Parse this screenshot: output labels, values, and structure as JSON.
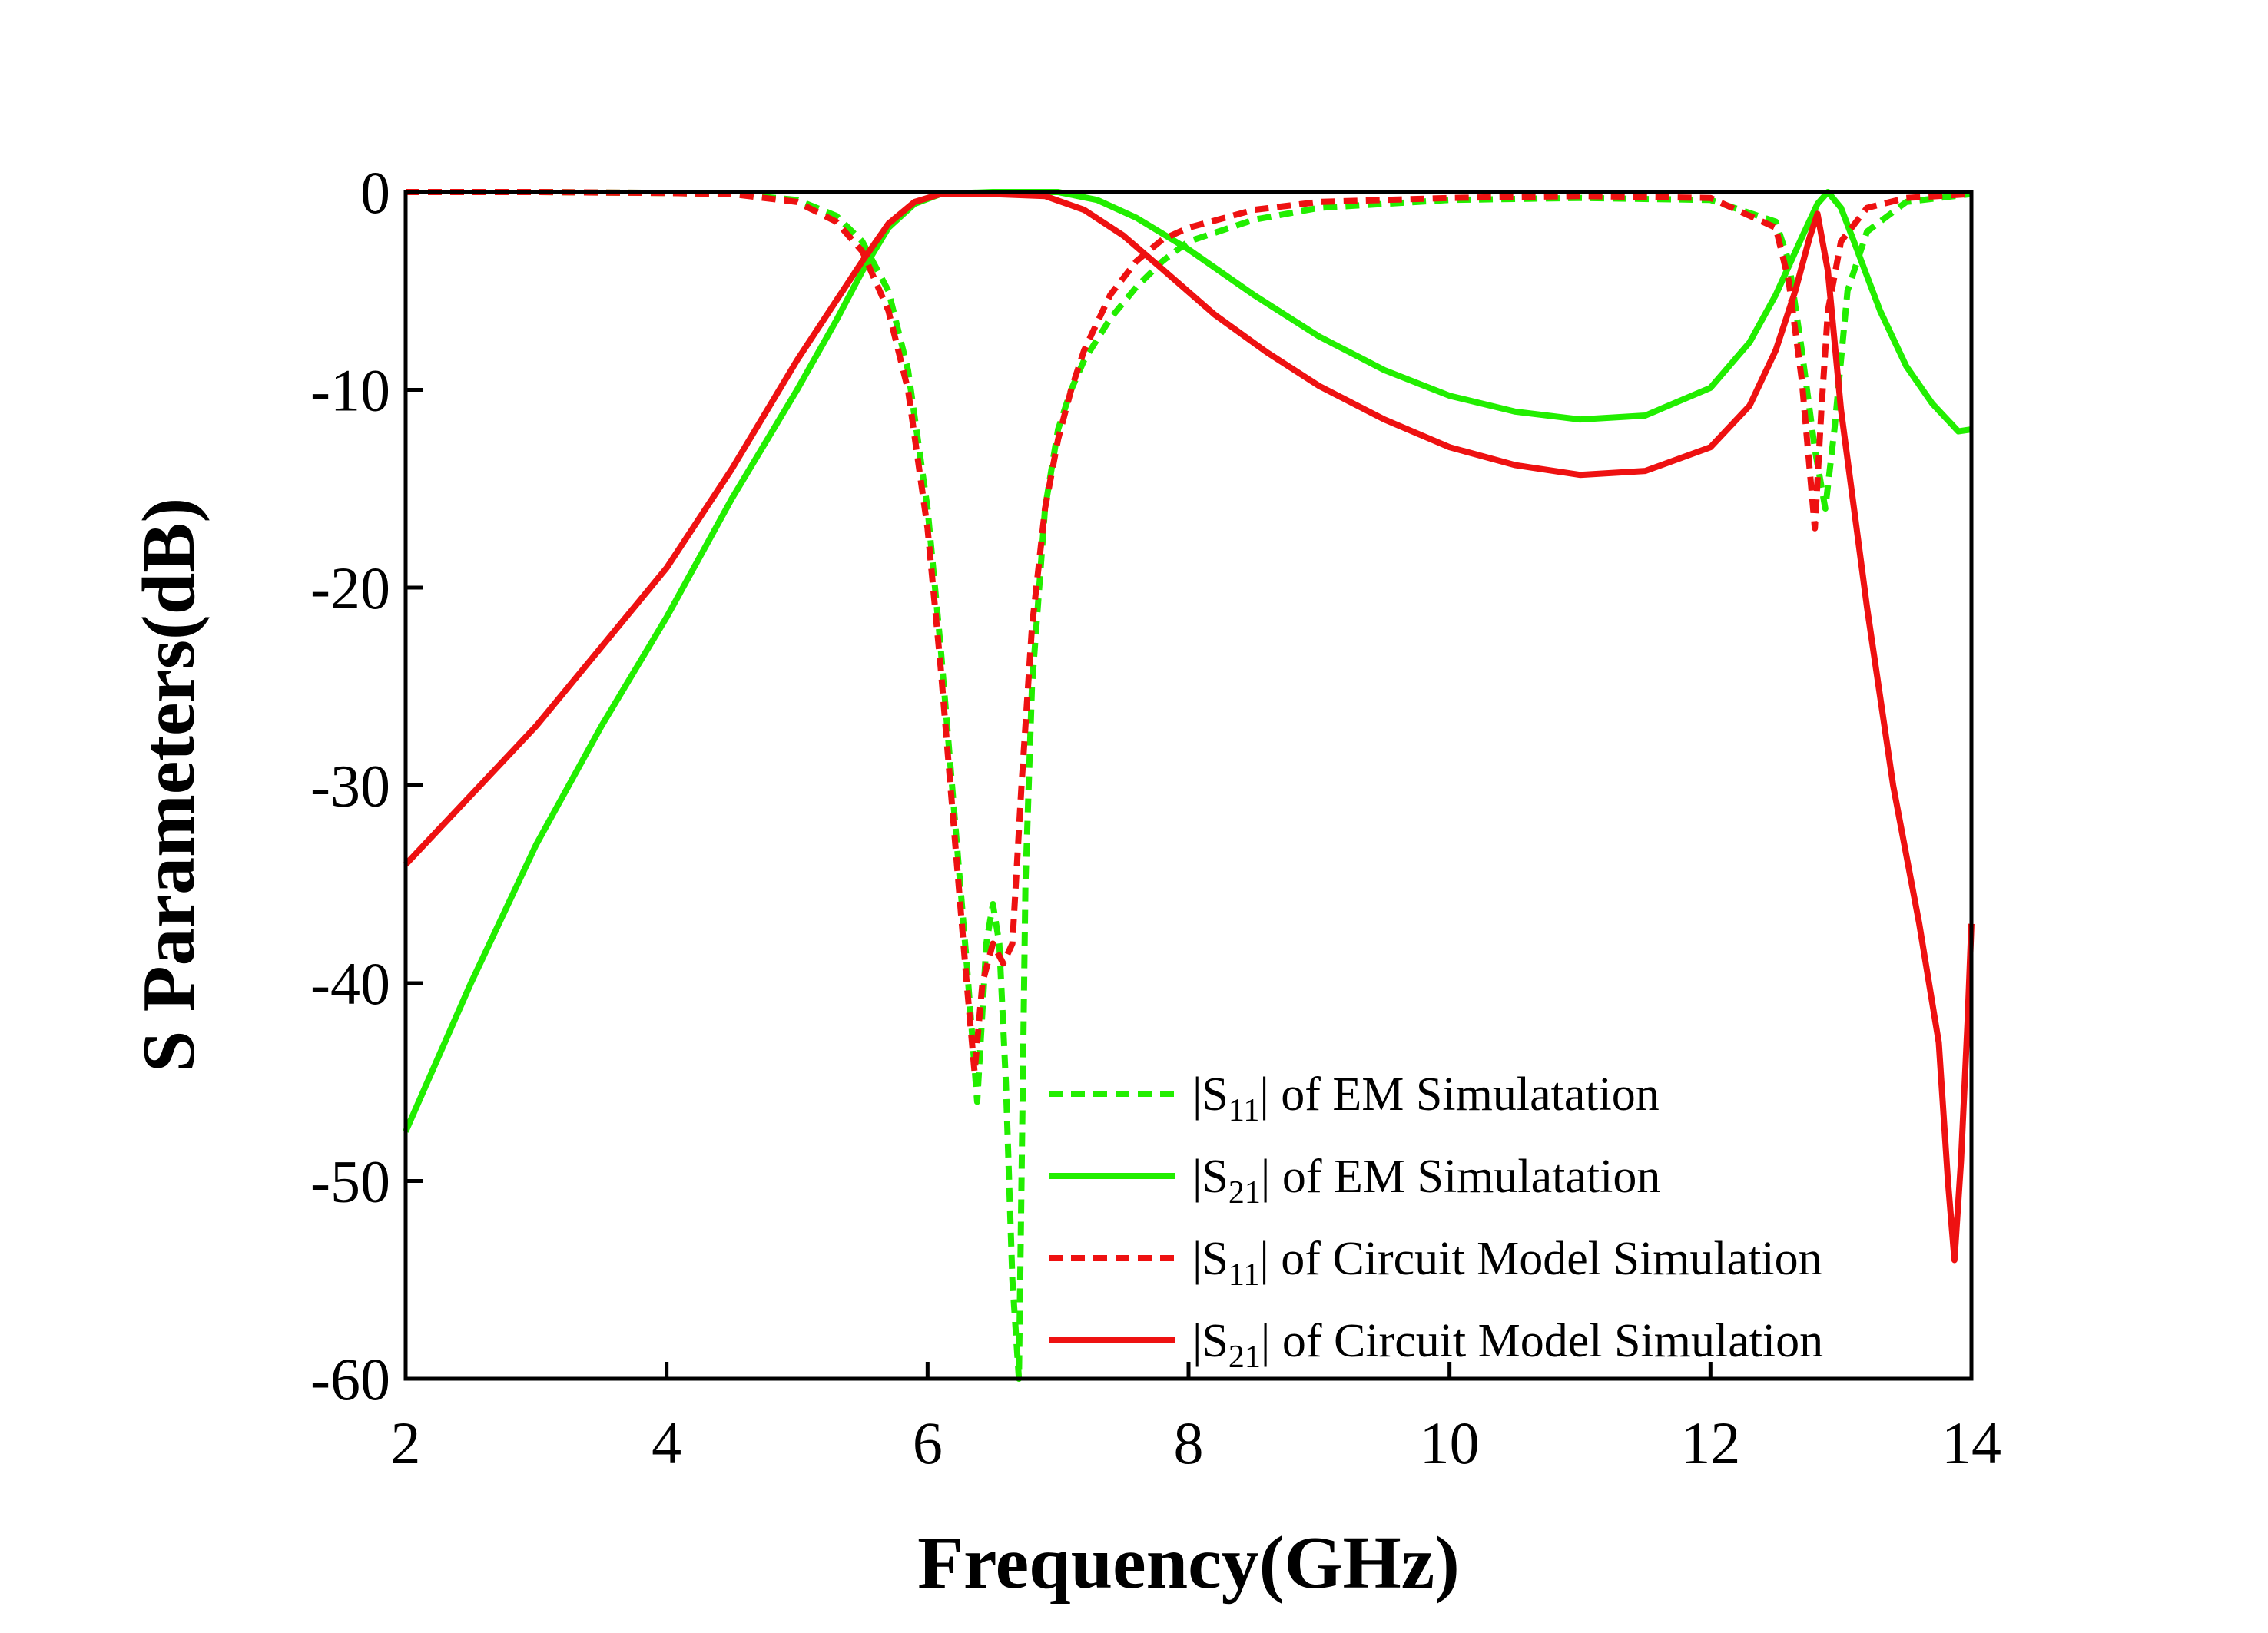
{
  "chart_data": {
    "type": "line",
    "title": "",
    "xlabel": "Frequency(GHz)",
    "ylabel": "S Parameters(dB)",
    "xlim": [
      2,
      14
    ],
    "ylim": [
      -60,
      0
    ],
    "xticks": [
      2,
      4,
      6,
      8,
      10,
      12,
      14
    ],
    "yticks": [
      0,
      -10,
      -20,
      -30,
      -40,
      -50,
      -60
    ],
    "xtick_labels": [
      "2",
      "4",
      "6",
      "8",
      "10",
      "12",
      "14"
    ],
    "ytick_labels": [
      "0",
      "-10",
      "-20",
      "-30",
      "-40",
      "-50",
      "-60"
    ],
    "grid": false,
    "legend_position": "bottom-right",
    "series": [
      {
        "name_parts": {
          "pre": "|S",
          "sub": "11",
          "post": "| of EM Simulatation"
        },
        "color": "#22ee00",
        "dashed": true,
        "x": [
          2,
          3,
          4,
          4.5,
          5,
          5.3,
          5.5,
          5.7,
          5.85,
          6.0,
          6.1,
          6.2,
          6.3,
          6.38,
          6.45,
          6.5,
          6.55,
          6.6,
          6.65,
          6.7,
          6.75,
          6.8,
          6.9,
          7.0,
          7.1,
          7.2,
          7.4,
          7.6,
          7.8,
          8.0,
          8.5,
          9,
          10,
          11,
          12,
          12.5,
          12.6,
          12.7,
          12.8,
          12.88,
          12.95,
          13.05,
          13.2,
          13.5,
          14
        ],
        "y": [
          0,
          0,
          -0.05,
          -0.1,
          -0.4,
          -1.2,
          -2.5,
          -5,
          -9,
          -16,
          -23,
          -31,
          -39,
          -46,
          -38,
          -36,
          -38,
          -45,
          -55,
          -60,
          -35,
          -25,
          -16,
          -12,
          -10,
          -8.5,
          -6.4,
          -4.8,
          -3.5,
          -2.5,
          -1.4,
          -0.8,
          -0.4,
          -0.3,
          -0.4,
          -1.5,
          -3.5,
          -8,
          -13,
          -16,
          -12,
          -5,
          -2,
          -0.5,
          -0.1
        ]
      },
      {
        "name_parts": {
          "pre": "|S",
          "sub": "21",
          "post": "| of EM Simulatation"
        },
        "color": "#22ee00",
        "dashed": false,
        "x": [
          2,
          2.5,
          3,
          3.5,
          4,
          4.5,
          5,
          5.3,
          5.5,
          5.7,
          5.9,
          6.1,
          6.5,
          7.0,
          7.3,
          7.6,
          8,
          8.5,
          9,
          9.5,
          10,
          10.5,
          11,
          11.5,
          12,
          12.3,
          12.5,
          12.7,
          12.82,
          12.9,
          13,
          13.1,
          13.3,
          13.5,
          13.7,
          13.9,
          14
        ],
        "y": [
          -47.5,
          -40,
          -33,
          -27,
          -21.5,
          -15.5,
          -10,
          -6.5,
          -4,
          -1.8,
          -0.6,
          -0.1,
          0,
          0,
          -0.4,
          -1.3,
          -2.9,
          -5.2,
          -7.3,
          -9,
          -10.3,
          -11.1,
          -11.5,
          -11.3,
          -9.9,
          -7.6,
          -5.2,
          -2.3,
          -0.6,
          0,
          -0.8,
          -2.5,
          -6,
          -8.8,
          -10.7,
          -12.1,
          -12
        ]
      },
      {
        "name_parts": {
          "pre": "|S",
          "sub": "11",
          "post": "| of Circuit Model Simulation"
        },
        "color": "#ee1111",
        "dashed": true,
        "x": [
          2,
          3,
          4,
          4.5,
          5,
          5.3,
          5.5,
          5.7,
          5.85,
          6.0,
          6.1,
          6.2,
          6.3,
          6.36,
          6.42,
          6.5,
          6.58,
          6.65,
          6.72,
          6.8,
          6.9,
          7.0,
          7.1,
          7.2,
          7.4,
          7.6,
          7.8,
          8.0,
          8.5,
          9,
          10,
          11,
          12,
          12.5,
          12.6,
          12.7,
          12.76,
          12.8,
          12.85,
          12.9,
          13.0,
          13.2,
          13.5,
          14
        ],
        "y": [
          0,
          0,
          -0.05,
          -0.1,
          -0.5,
          -1.5,
          -3,
          -6,
          -10,
          -17,
          -24,
          -32,
          -40,
          -44.5,
          -40,
          -38,
          -39,
          -38,
          -30,
          -22,
          -16,
          -12.5,
          -10,
          -8,
          -5.2,
          -3.5,
          -2.4,
          -1.8,
          -0.9,
          -0.5,
          -0.3,
          -0.2,
          -0.3,
          -1.8,
          -4.5,
          -9.5,
          -14,
          -17,
          -11,
          -6,
          -2.5,
          -0.8,
          -0.3,
          -0.1
        ]
      },
      {
        "name_parts": {
          "pre": "|S",
          "sub": "21",
          "post": "| of Circuit Model Simulation"
        },
        "color": "#ee1111",
        "dashed": false,
        "x": [
          2,
          2.5,
          3,
          3.5,
          4,
          4.5,
          5,
          5.3,
          5.5,
          5.7,
          5.9,
          6.1,
          6.5,
          6.9,
          7.2,
          7.5,
          7.8,
          8.2,
          8.6,
          9,
          9.5,
          10,
          10.5,
          11,
          11.5,
          12,
          12.3,
          12.5,
          12.65,
          12.76,
          12.82,
          12.9,
          13.0,
          13.2,
          13.4,
          13.6,
          13.75,
          13.82,
          13.87,
          13.92,
          13.97,
          14
        ],
        "y": [
          -34,
          -30.5,
          -27,
          -23,
          -19,
          -14,
          -8.5,
          -5.5,
          -3.5,
          -1.6,
          -0.5,
          -0.1,
          -0.1,
          -0.2,
          -0.9,
          -2.2,
          -3.9,
          -6.2,
          -8.1,
          -9.8,
          -11.5,
          -12.9,
          -13.8,
          -14.3,
          -14.1,
          -12.9,
          -10.8,
          -8,
          -5,
          -2.3,
          -1.1,
          -4,
          -11,
          -21,
          -30,
          -37,
          -43,
          -50,
          -54,
          -49,
          -42,
          -37
        ]
      }
    ]
  }
}
